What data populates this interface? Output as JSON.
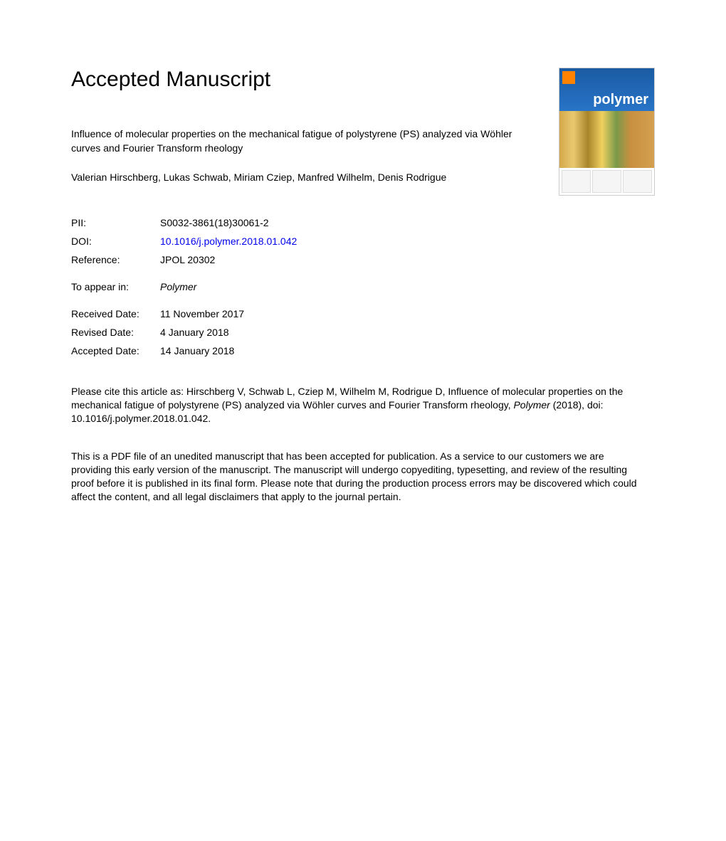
{
  "header": {
    "main_title": "Accepted Manuscript",
    "article_title": "Influence of molecular properties on the mechanical fatigue of polystyrene (PS) analyzed via Wöhler curves and Fourier Transform rheology",
    "authors": "Valerian Hirschberg, Lukas Schwab, Miriam Cziep, Manfred Wilhelm, Denis Rodrigue"
  },
  "cover": {
    "journal_name": "polymer"
  },
  "metadata": {
    "pii_label": "PII:",
    "pii_value": "S0032-3861(18)30061-2",
    "doi_label": "DOI:",
    "doi_value": "10.1016/j.polymer.2018.01.042",
    "reference_label": "Reference:",
    "reference_value": "JPOL 20302",
    "appear_label": "To appear in:",
    "appear_value": "Polymer",
    "received_label": "Received Date:",
    "received_value": "11 November 2017",
    "revised_label": "Revised Date:",
    "revised_value": "4 January 2018",
    "accepted_label": "Accepted Date:",
    "accepted_value": "14 January 2018"
  },
  "citation": {
    "prefix": "Please cite this article as: Hirschberg V, Schwab L, Cziep M, Wilhelm M, Rodrigue D, Influence of molecular properties on the mechanical fatigue of polystyrene (PS) analyzed via Wöhler curves and Fourier Transform rheology, ",
    "journal": "Polymer",
    "suffix": " (2018), doi: 10.1016/j.polymer.2018.01.042."
  },
  "disclaimer": {
    "text": "This is a PDF file of an unedited manuscript that has been accepted for publication. As a service to our customers we are providing this early version of the manuscript. The manuscript will undergo copyediting, typesetting, and review of the resulting proof before it is published in its final form. Please note that during the production process errors may be discovered which could affect the content, and all legal disclaimers that apply to the journal pertain."
  },
  "styling": {
    "background_color": "#ffffff",
    "text_color": "#000000",
    "link_color": "#0000ee",
    "title_fontsize": 30,
    "body_fontsize": 14,
    "cover_header_gradient_start": "#1a5ba3",
    "cover_header_gradient_end": "#2874c7",
    "elsevier_orange": "#ff8200"
  }
}
